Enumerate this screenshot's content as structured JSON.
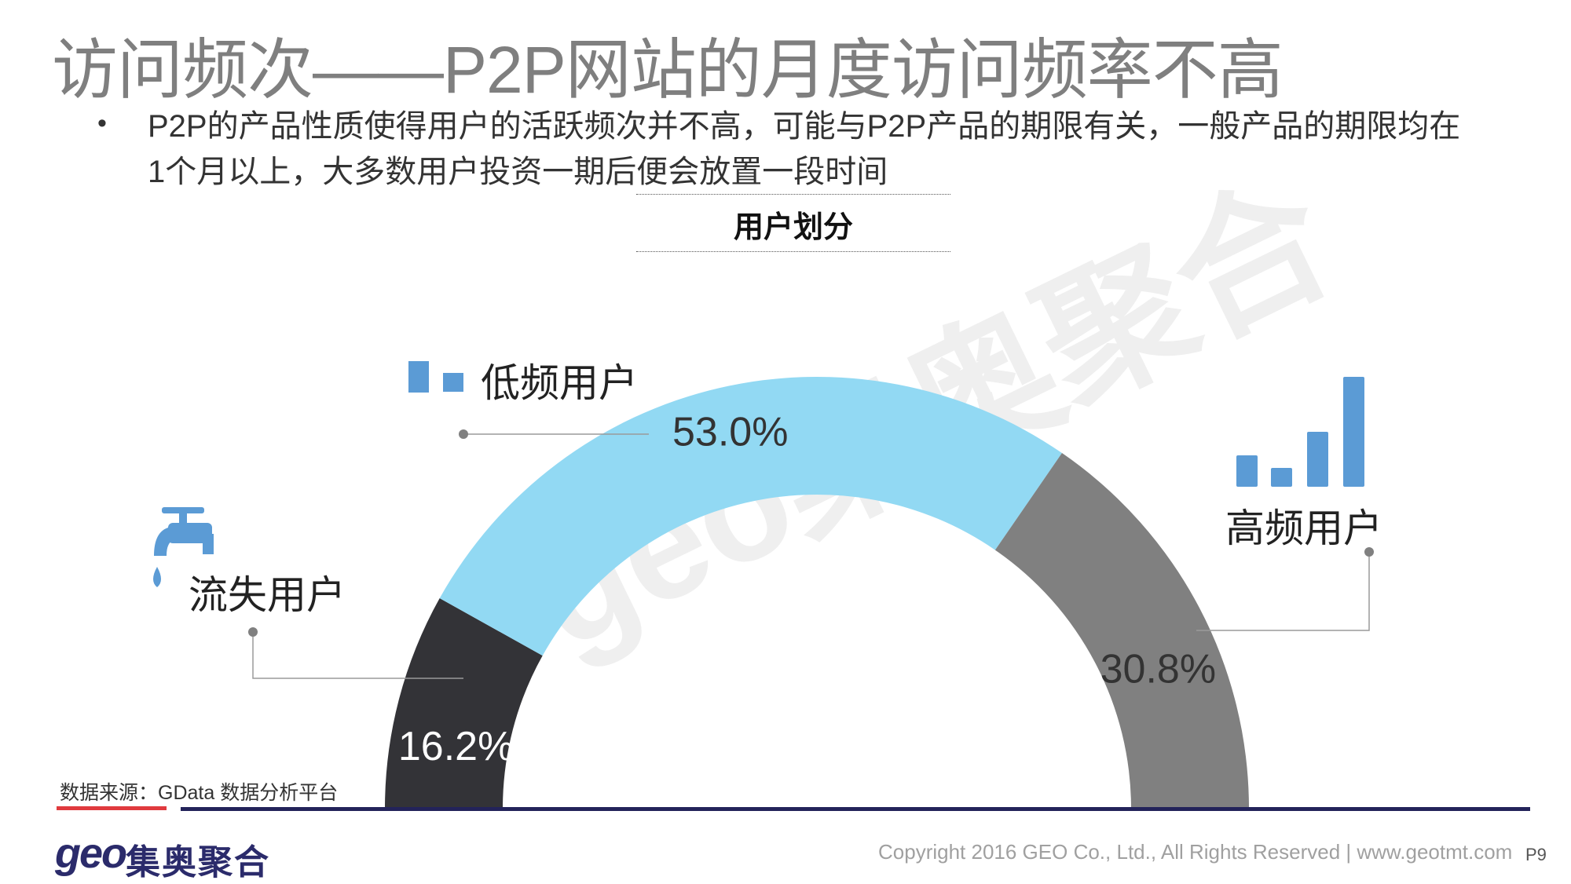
{
  "title": "访问频次——P2P网站的月度访问频率不高",
  "bullet": {
    "marker": "•",
    "text": "P2P的产品性质使得用户的活跃频次并不高，可能与P2P产品的期限有关，一般产品的期限均在1个月以上，大多数用户投资一期后便会放置一段时间"
  },
  "watermark": "geo集奥聚合",
  "chart_data": {
    "type": "pie",
    "subtype": "half-donut",
    "title": "用户划分",
    "categories": [
      "流失用户",
      "低频用户",
      "高频用户"
    ],
    "values": [
      16.2,
      53.0,
      30.8
    ],
    "labels": [
      "16.2%",
      "53.0%",
      "30.8%"
    ],
    "colors": [
      "#333337",
      "#92d9f3",
      "#808080"
    ],
    "icon_color": "#5b9bd5",
    "icons": [
      "faucet-icon",
      "low-bars-icon",
      "rising-bars-icon"
    ]
  },
  "footer": {
    "source": "数据来源：GData  数据分析平台",
    "logo_geo": "geo",
    "logo_cn": "集奥聚合",
    "copyright": "Copyright 2016 GEO Co., Ltd., All Rights Reserved   |  www.geotmt.com",
    "page": "P9"
  }
}
